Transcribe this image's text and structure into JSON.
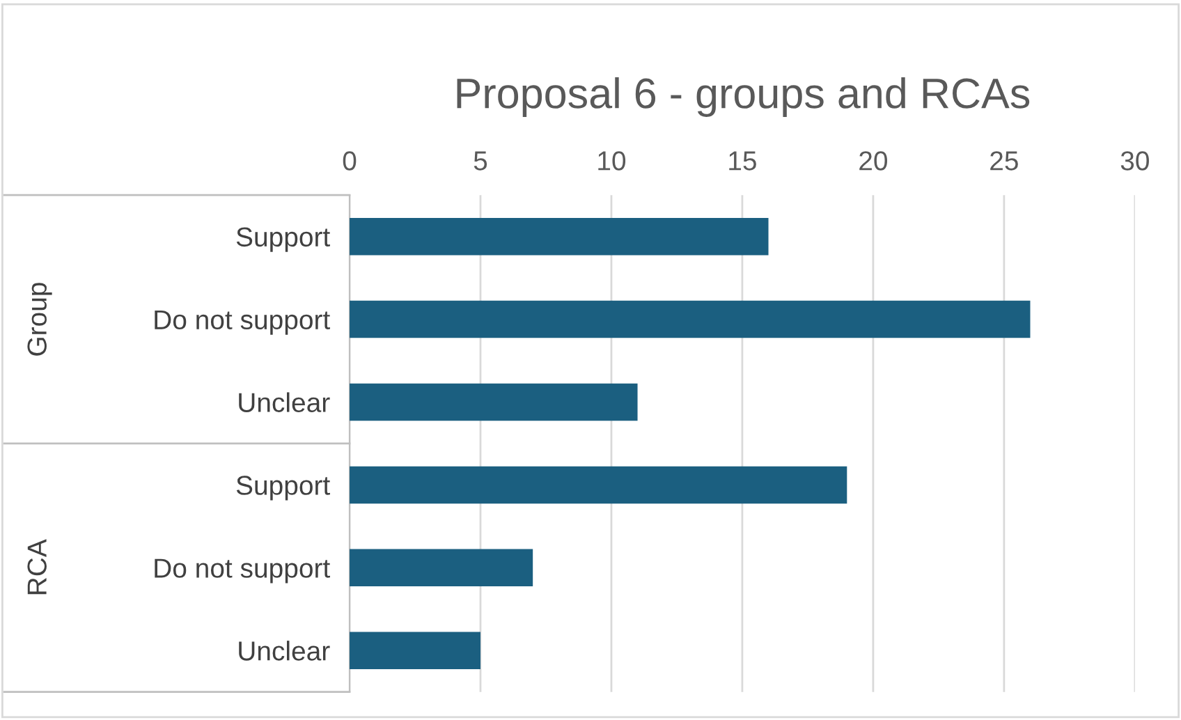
{
  "chart_data": {
    "type": "bar",
    "orientation": "horizontal",
    "title": "Proposal 6 - groups and RCAs",
    "categories": [
      "Support",
      "Do not support",
      "Unclear",
      "Support",
      "Do not support",
      "Unclear"
    ],
    "values": [
      16,
      26,
      11,
      19,
      7,
      5
    ],
    "color": "#1b5f80",
    "xlim": [
      0,
      30
    ],
    "xticks": [
      0,
      5,
      10,
      15,
      20,
      25,
      30
    ],
    "grid": "x",
    "legend": false,
    "annotations": [
      "Group",
      "RCA"
    ]
  }
}
